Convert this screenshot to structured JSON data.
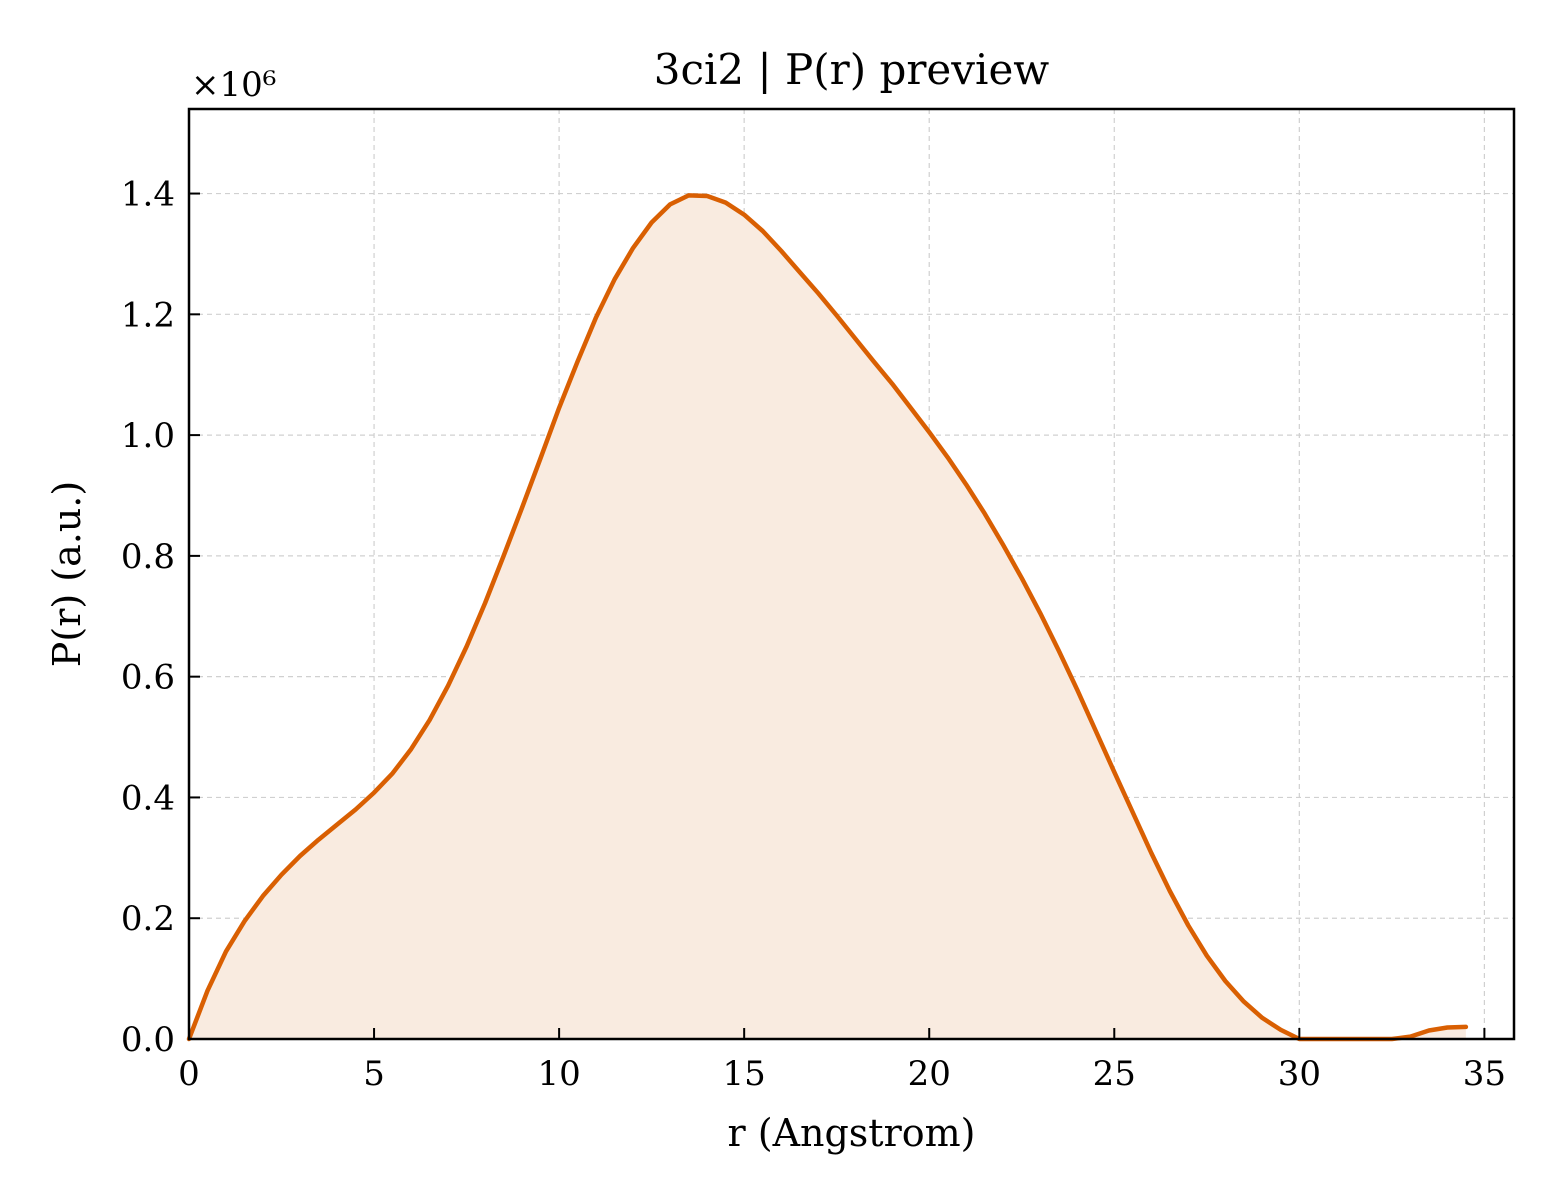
{
  "chart_data": {
    "type": "area",
    "title": "3ci2 | P(r) preview",
    "xlabel": "r (Angstrom)",
    "ylabel": "P(r) (a.u.)",
    "y_offset_label": "×10⁶",
    "xlim": [
      0,
      35.8
    ],
    "ylim": [
      0,
      1.54
    ],
    "x_ticks": [
      0,
      5,
      10,
      15,
      20,
      25,
      30,
      35
    ],
    "y_ticks": [
      0.0,
      0.2,
      0.4,
      0.6,
      0.8,
      1.0,
      1.2,
      1.4
    ],
    "x_tick_labels": [
      "0",
      "5",
      "10",
      "15",
      "20",
      "25",
      "30",
      "35"
    ],
    "y_tick_labels": [
      "0.0",
      "0.2",
      "0.4",
      "0.6",
      "0.8",
      "1.0",
      "1.2",
      "1.4"
    ],
    "grid": true,
    "line_color": "#d95f02",
    "fill_color": "#f9ebe0",
    "series": [
      {
        "x": [
          0,
          0.5,
          1,
          1.5,
          2,
          2.5,
          3,
          3.5,
          4,
          4.5,
          5,
          5.5,
          6,
          6.5,
          7,
          7.5,
          8,
          8.5,
          9,
          9.5,
          10,
          10.5,
          11,
          11.5,
          12,
          12.5,
          13,
          13.5,
          14,
          14.5,
          15,
          15.5,
          16,
          16.5,
          17,
          17.5,
          18,
          18.5,
          19,
          19.5,
          20,
          20.5,
          21,
          21.5,
          22,
          22.5,
          23,
          23.5,
          24,
          24.5,
          25,
          25.5,
          26,
          26.5,
          27,
          27.5,
          28,
          28.5,
          29,
          29.5,
          30,
          30.5,
          31,
          31.5,
          32,
          32.5,
          33,
          33.5,
          34,
          34.5
        ],
        "y": [
          0.0,
          0.08,
          0.145,
          0.195,
          0.237,
          0.272,
          0.303,
          0.33,
          0.355,
          0.38,
          0.408,
          0.44,
          0.48,
          0.528,
          0.585,
          0.65,
          0.722,
          0.8,
          0.88,
          0.962,
          1.045,
          1.122,
          1.195,
          1.258,
          1.31,
          1.352,
          1.382,
          1.397,
          1.396,
          1.385,
          1.365,
          1.338,
          1.305,
          1.27,
          1.235,
          1.198,
          1.16,
          1.122,
          1.085,
          1.045,
          1.005,
          0.963,
          0.918,
          0.87,
          0.818,
          0.763,
          0.705,
          0.643,
          0.578,
          0.51,
          0.442,
          0.375,
          0.308,
          0.245,
          0.188,
          0.138,
          0.096,
          0.062,
          0.035,
          0.015,
          0.0,
          0.0,
          0.0,
          0.0,
          0.0,
          0.0,
          0.004,
          0.014,
          0.019,
          0.02
        ]
      }
    ]
  }
}
